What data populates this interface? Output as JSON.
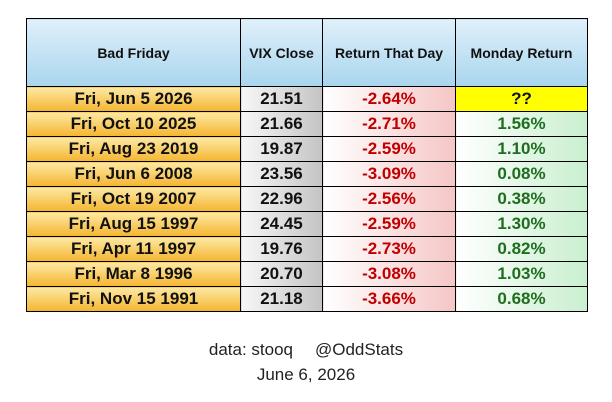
{
  "table": {
    "header": [
      "Bad Friday",
      "VIX Close",
      "Return That Day",
      "Monday Return"
    ],
    "rows": [
      [
        "Fri, Jun 5 2026",
        "21.51",
        "-2.64%",
        "??"
      ],
      [
        "Fri, Oct 10 2025",
        "21.66",
        "-2.71%",
        "1.56%"
      ],
      [
        "Fri, Aug 23 2019",
        "19.87",
        "-2.59%",
        "1.10%"
      ],
      [
        "Fri, Jun 6 2008",
        "23.56",
        "-3.09%",
        "0.08%"
      ],
      [
        "Fri, Oct 19 2007",
        "22.96",
        "-2.56%",
        "0.38%"
      ],
      [
        "Fri, Aug 15 1997",
        "24.45",
        "-2.59%",
        "1.30%"
      ],
      [
        "Fri, Apr 11 1997",
        "19.76",
        "-2.73%",
        "0.82%"
      ],
      [
        "Fri, Mar 8 1996",
        "20.70",
        "-3.08%",
        "1.03%"
      ],
      [
        "Fri, Nov 15 1991",
        "21.18",
        "-3.66%",
        "0.68%"
      ]
    ]
  },
  "footer": {
    "source": "data: stooq",
    "handle": "@OddStats",
    "date": "June 6, 2026"
  }
}
